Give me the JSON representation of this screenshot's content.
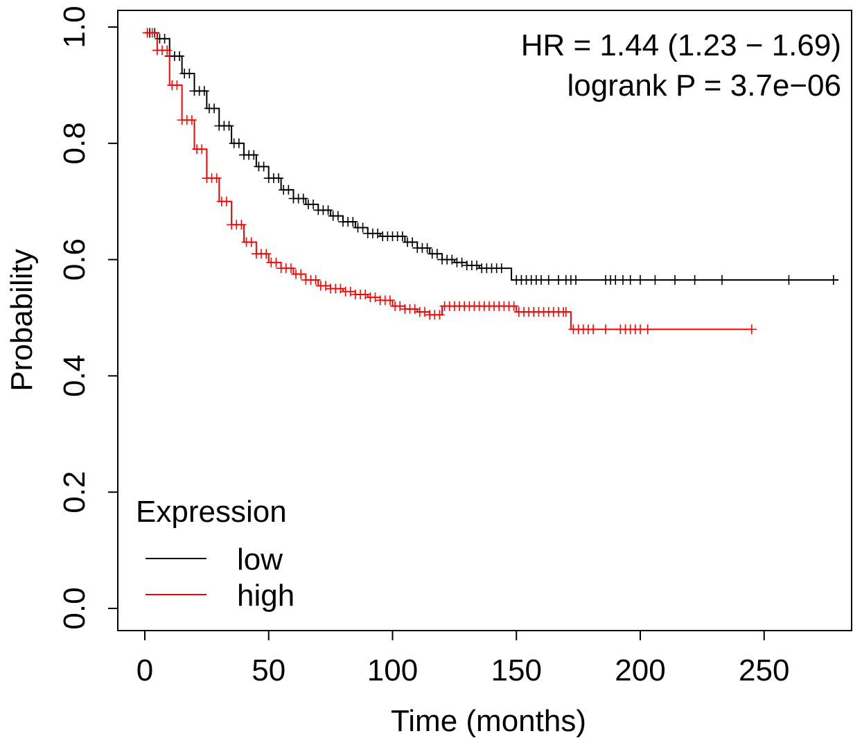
{
  "chart_data": {
    "type": "line",
    "subtype": "kaplan-meier",
    "xlabel": "Time (months)",
    "ylabel": "Probability",
    "xlim": [
      0,
      280
    ],
    "ylim": [
      0,
      1
    ],
    "xticks": [
      "0",
      "50",
      "100",
      "150",
      "200",
      "250"
    ],
    "yticks": [
      "0.0",
      "0.2",
      "0.4",
      "0.6",
      "0.8",
      "1.0"
    ],
    "annotations": [
      "HR = 1.44 (1.23 − 1.69)",
      "logrank P = 3.7e−06"
    ],
    "legend": {
      "title": "Expression",
      "position": "bottom-left",
      "entries": [
        {
          "label": "low",
          "color": "#000000"
        },
        {
          "label": "high",
          "color": "#ff0000"
        }
      ]
    },
    "series": [
      {
        "name": "low",
        "color": "#000000",
        "x": [
          0,
          5,
          10,
          15,
          20,
          25,
          30,
          35,
          40,
          45,
          50,
          55,
          60,
          65,
          70,
          75,
          80,
          85,
          90,
          95,
          100,
          105,
          110,
          115,
          120,
          125,
          130,
          135,
          140,
          145,
          148,
          160,
          180,
          200,
          220,
          240,
          260,
          280
        ],
        "y": [
          0.99,
          0.98,
          0.95,
          0.92,
          0.89,
          0.86,
          0.83,
          0.8,
          0.78,
          0.76,
          0.74,
          0.72,
          0.705,
          0.695,
          0.685,
          0.675,
          0.665,
          0.655,
          0.645,
          0.64,
          0.64,
          0.63,
          0.62,
          0.61,
          0.6,
          0.595,
          0.59,
          0.585,
          0.585,
          0.585,
          0.565,
          0.565,
          0.565,
          0.565,
          0.565,
          0.565,
          0.565,
          0.565
        ],
        "censor_x": [
          2,
          4,
          6,
          8,
          10,
          12,
          14,
          16,
          18,
          20,
          22,
          24,
          26,
          28,
          30,
          32,
          34,
          36,
          38,
          40,
          42,
          44,
          46,
          48,
          50,
          52,
          54,
          56,
          58,
          60,
          62,
          64,
          66,
          68,
          70,
          72,
          74,
          76,
          78,
          80,
          82,
          84,
          86,
          88,
          90,
          92,
          94,
          96,
          98,
          100,
          102,
          104,
          106,
          108,
          110,
          112,
          114,
          116,
          118,
          120,
          122,
          124,
          126,
          128,
          130,
          132,
          134,
          136,
          138,
          140,
          142,
          144,
          150,
          152,
          154,
          156,
          158,
          160,
          163,
          167,
          170,
          172,
          174,
          186,
          188,
          190,
          193,
          196,
          200,
          206,
          214,
          222,
          233,
          260,
          278
        ]
      },
      {
        "name": "high",
        "color": "#ff0000",
        "x": [
          0,
          5,
          10,
          15,
          20,
          25,
          30,
          35,
          40,
          45,
          50,
          55,
          60,
          65,
          70,
          75,
          80,
          85,
          90,
          95,
          100,
          105,
          110,
          115,
          120,
          125,
          130,
          135,
          140,
          145,
          150,
          155,
          160,
          165,
          170,
          172,
          180,
          200,
          220,
          245
        ],
        "y": [
          0.99,
          0.96,
          0.9,
          0.84,
          0.79,
          0.74,
          0.7,
          0.66,
          0.63,
          0.61,
          0.595,
          0.585,
          0.575,
          0.565,
          0.555,
          0.55,
          0.545,
          0.54,
          0.535,
          0.53,
          0.52,
          0.515,
          0.51,
          0.505,
          0.52,
          0.52,
          0.52,
          0.52,
          0.52,
          0.52,
          0.51,
          0.51,
          0.51,
          0.51,
          0.51,
          0.48,
          0.48,
          0.48,
          0.48,
          0.48
        ],
        "censor_x": [
          1,
          3,
          5,
          7,
          9,
          11,
          13,
          15,
          17,
          19,
          21,
          23,
          25,
          27,
          29,
          31,
          33,
          35,
          37,
          39,
          41,
          43,
          45,
          47,
          49,
          51,
          53,
          55,
          57,
          59,
          61,
          63,
          65,
          67,
          69,
          71,
          73,
          75,
          77,
          79,
          81,
          83,
          85,
          87,
          89,
          91,
          93,
          95,
          97,
          99,
          101,
          103,
          105,
          107,
          109,
          111,
          113,
          115,
          117,
          119,
          121,
          123,
          125,
          127,
          129,
          131,
          133,
          135,
          137,
          139,
          141,
          143,
          145,
          147,
          149,
          151,
          153,
          155,
          157,
          159,
          161,
          163,
          165,
          167,
          169,
          170,
          173,
          175,
          177,
          179,
          181,
          186,
          192,
          194,
          196,
          198,
          200,
          203,
          245
        ]
      }
    ]
  }
}
